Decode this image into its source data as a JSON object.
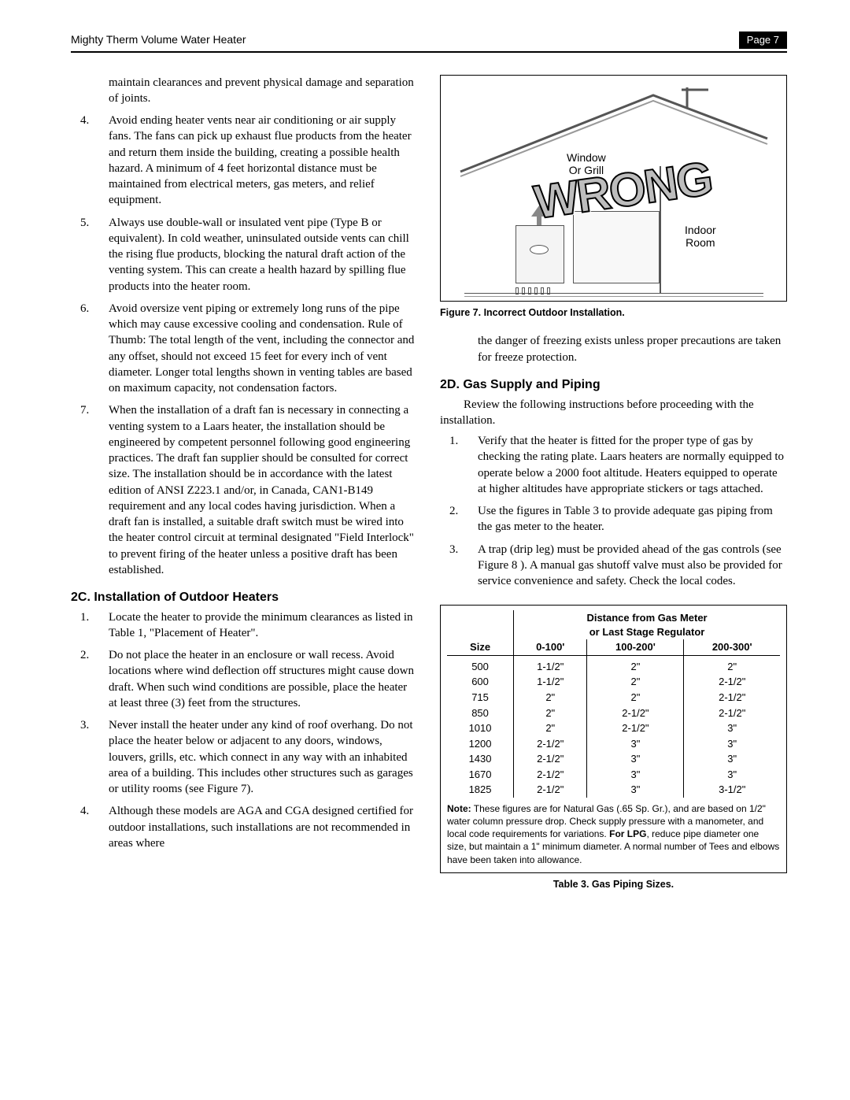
{
  "header": {
    "left": "Mighty Therm Volume Water Heater",
    "right": "Page 7"
  },
  "leftCol": {
    "intro": "maintain clearances and prevent physical damage and separation of joints.",
    "listA": [
      {
        "n": "4.",
        "t": "Avoid ending heater vents near air conditioning or air supply fans. The fans can pick up exhaust flue products from the heater and return them inside the building, creating a possible health hazard. A minimum of 4 feet horizontal distance must be maintained from electrical meters, gas meters, and relief equipment."
      },
      {
        "n": "5.",
        "t": "Always use double-wall or insulated vent pipe (Type B or equivalent). In cold weather, uninsulated outside vents can chill the rising flue products, blocking the natural draft action of the venting system. This can create a health hazard by spilling flue products into the heater room."
      },
      {
        "n": "6.",
        "t": "Avoid oversize vent piping or extremely long runs of the pipe which may cause excessive cooling and condensation. Rule of Thumb: The total length of the vent, including the connector and any offset, should not exceed 15 feet for every inch of vent diameter. Longer total lengths shown in venting tables are based on maximum capacity, not condensation factors."
      },
      {
        "n": "7.",
        "t": "When the installation of a draft fan is necessary in connecting a venting system to a Laars heater, the installation should be engineered by competent personnel following good engineering practices. The draft fan supplier should be consulted for correct size. The installation should be in accordance with the latest edition of ANSI Z223.1 and/or, in Canada, CAN1-B149 requirement and any local codes having jurisdiction. When a draft fan is installed, a suitable draft switch must be wired into the heater control circuit at terminal designated \"Field Interlock\" to prevent firing of the heater unless a positive draft has been established."
      }
    ],
    "sec2c_title": "2C. Installation of Outdoor Heaters",
    "listB": [
      {
        "n": "1.",
        "t": "Locate the heater to provide the minimum clearances as listed in Table 1, \"Placement of Heater\"."
      },
      {
        "n": "2.",
        "t": "Do not place the heater in an enclosure or wall recess. Avoid locations where wind deflection off structures might cause down draft. When such wind conditions are possible, place the heater at least three (3) feet from the structures."
      },
      {
        "n": "3.",
        "t": "Never install the heater under any kind of roof overhang. Do not place the heater below or adjacent to any doors, windows, louvers, grills, etc. which connect in any way with an inhabited area of a building. This includes other structures such as garages or utility rooms (see Figure 7)."
      },
      {
        "n": "4.",
        "t": "Although these models are AGA and CGA designed certified for outdoor installations, such installations are not recommended in areas where"
      }
    ]
  },
  "rightCol": {
    "fig": {
      "window_label_l1": "Window",
      "window_label_l2": "Or Grill",
      "indoor_l1": "Indoor",
      "indoor_l2": "Room",
      "wrong": "WRONG",
      "caption": "Figure 7. Incorrect Outdoor Installation."
    },
    "cont": "the danger of freezing exists unless proper precautions are taken for freeze protection.",
    "sec2d_title": "2D. Gas Supply and Piping",
    "sec2d_lead": "Review the following instructions before proceeding with the installation.",
    "list2d": [
      {
        "n": "1.",
        "t": "Verify that the heater is fitted for the proper type of gas by checking the rating plate. Laars heaters are normally equipped to operate below a 2000 foot altitude. Heaters equipped to operate at higher altitudes have appropriate stickers or tags attached."
      },
      {
        "n": "2.",
        "t": "Use the figures in Table 3 to provide adequate gas piping from the gas meter to the heater."
      },
      {
        "n": "3.",
        "t": "A trap (drip leg) must be provided ahead of the gas controls (see Figure 8 ). A manual gas shutoff valve must also be provided for service convenience and safety. Check the local codes."
      }
    ],
    "table": {
      "dist_head_l1": "Distance from Gas Meter",
      "dist_head_l2": "or Last Stage Regulator",
      "size_head": "Size",
      "cols": [
        "0-100'",
        "100-200'",
        "200-300'"
      ],
      "rows": [
        {
          "size": "500",
          "c": [
            "1-1/2\"",
            "2\"",
            "2\""
          ]
        },
        {
          "size": "600",
          "c": [
            "1-1/2\"",
            "2\"",
            "2-1/2\""
          ]
        },
        {
          "size": "715",
          "c": [
            "2\"",
            "2\"",
            "2-1/2\""
          ]
        },
        {
          "size": "850",
          "c": [
            "2\"",
            "2-1/2\"",
            "2-1/2\""
          ]
        },
        {
          "size": "1010",
          "c": [
            "2\"",
            "2-1/2\"",
            "3\""
          ]
        },
        {
          "size": "1200",
          "c": [
            "2-1/2\"",
            "3\"",
            "3\""
          ]
        },
        {
          "size": "1430",
          "c": [
            "2-1/2\"",
            "3\"",
            "3\""
          ]
        },
        {
          "size": "1670",
          "c": [
            "2-1/2\"",
            "3\"",
            "3\""
          ]
        },
        {
          "size": "1825",
          "c": [
            "2-1/2\"",
            "3\"",
            "3-1/2\""
          ]
        }
      ],
      "note_label": "Note:",
      "note_text": " These figures are for Natural Gas (.65 Sp. Gr.), and are based on 1/2\" water column pressure drop. Check supply pressure with a manometer, and local code requirements for variations. ",
      "note_bold2": "For LPG",
      "note_text2": ", reduce pipe diameter one size, but maintain a 1\" minimum diameter. A normal number of Tees and elbows have been taken into allowance.",
      "caption": "Table 3. Gas Piping Sizes."
    }
  }
}
